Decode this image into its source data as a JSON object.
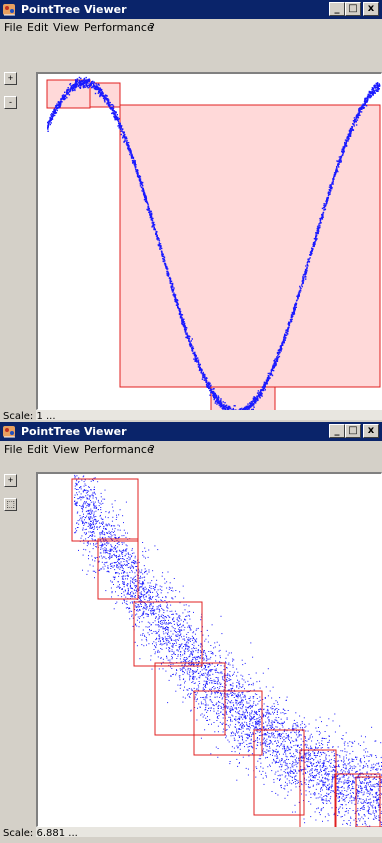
{
  "windows": [
    {
      "title": "PointTree Viewer",
      "controls": {
        "minimize": "_",
        "maximize": "□",
        "close": "x"
      },
      "menu": [
        "File",
        "Edit",
        "View",
        "Performance",
        "?"
      ],
      "side_buttons": [
        "+",
        "-"
      ],
      "status": "Scale: 1 ...",
      "icons": {
        "app": "pointtree-app-icon"
      }
    },
    {
      "title": "PointTree Viewer",
      "controls": {
        "minimize": "_",
        "maximize": "□",
        "close": "x"
      },
      "menu": [
        "File",
        "Edit",
        "View",
        "Performance",
        "?"
      ],
      "side_buttons": [
        "+",
        "⬚"
      ],
      "status": "Scale: 6.881 ...",
      "icons": {
        "app": "pointtree-app-icon"
      }
    }
  ],
  "colors": {
    "titlebar": "#0a246a",
    "points": "#1a1aff",
    "box_stroke": "#e02020",
    "box_fill": "#ffd9d9"
  }
}
